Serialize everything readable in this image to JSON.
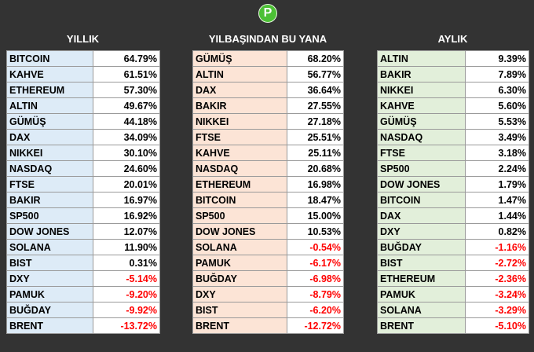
{
  "logo_letter": "P",
  "panels": [
    {
      "title": "YILLIK",
      "rows": [
        {
          "name": "BITCOIN",
          "value": "64.79%"
        },
        {
          "name": "KAHVE",
          "value": "61.51%"
        },
        {
          "name": "ETHEREUM",
          "value": "57.30%"
        },
        {
          "name": "ALTIN",
          "value": "49.67%"
        },
        {
          "name": "GÜMÜŞ",
          "value": "44.18%"
        },
        {
          "name": "DAX",
          "value": "34.09%"
        },
        {
          "name": "NIKKEI",
          "value": "30.10%"
        },
        {
          "name": "NASDAQ",
          "value": "24.60%"
        },
        {
          "name": "FTSE",
          "value": "20.01%"
        },
        {
          "name": "BAKIR",
          "value": "16.97%"
        },
        {
          "name": "SP500",
          "value": "16.92%"
        },
        {
          "name": "DOW JONES",
          "value": "12.07%"
        },
        {
          "name": "SOLANA",
          "value": "11.90%"
        },
        {
          "name": "BIST",
          "value": "0.31%"
        },
        {
          "name": "DXY",
          "value": "-5.14%"
        },
        {
          "name": "PAMUK",
          "value": "-9.20%"
        },
        {
          "name": "BUĞDAY",
          "value": "-9.92%"
        },
        {
          "name": "BRENT",
          "value": "-13.72%"
        }
      ]
    },
    {
      "title": "YILBAŞINDAN BU YANA",
      "rows": [
        {
          "name": "GÜMÜŞ",
          "value": "68.20%"
        },
        {
          "name": "ALTIN",
          "value": "56.77%"
        },
        {
          "name": "DAX",
          "value": "36.64%"
        },
        {
          "name": "BAKIR",
          "value": "27.55%"
        },
        {
          "name": "NIKKEI",
          "value": "27.18%"
        },
        {
          "name": "FTSE",
          "value": "25.51%"
        },
        {
          "name": "KAHVE",
          "value": "25.11%"
        },
        {
          "name": "NASDAQ",
          "value": "20.68%"
        },
        {
          "name": "ETHEREUM",
          "value": "16.98%"
        },
        {
          "name": "BITCOIN",
          "value": "18.47%"
        },
        {
          "name": "SP500",
          "value": "15.00%"
        },
        {
          "name": "DOW JONES",
          "value": "10.53%"
        },
        {
          "name": "SOLANA",
          "value": "-0.54%"
        },
        {
          "name": "PAMUK",
          "value": "-6.17%"
        },
        {
          "name": "BUĞDAY",
          "value": "-6.98%"
        },
        {
          "name": "DXY",
          "value": "-8.79%"
        },
        {
          "name": "BIST",
          "value": "-6.20%"
        },
        {
          "name": "BRENT",
          "value": "-12.72%"
        }
      ]
    },
    {
      "title": "AYLIK",
      "rows": [
        {
          "name": "ALTIN",
          "value": "9.39%"
        },
        {
          "name": "BAKIR",
          "value": "7.89%"
        },
        {
          "name": "NIKKEI",
          "value": "6.30%"
        },
        {
          "name": "KAHVE",
          "value": "5.60%"
        },
        {
          "name": "GÜMÜŞ",
          "value": "5.53%"
        },
        {
          "name": "NASDAQ",
          "value": "3.49%"
        },
        {
          "name": "FTSE",
          "value": "3.18%"
        },
        {
          "name": "SP500",
          "value": "2.24%"
        },
        {
          "name": "DOW JONES",
          "value": "1.79%"
        },
        {
          "name": "BITCOIN",
          "value": "1.47%"
        },
        {
          "name": "DAX",
          "value": "1.44%"
        },
        {
          "name": "DXY",
          "value": "0.82%"
        },
        {
          "name": "BUĞDAY",
          "value": "-1.16%"
        },
        {
          "name": "BIST",
          "value": "-2.72%"
        },
        {
          "name": "ETHEREUM",
          "value": "-2.36%"
        },
        {
          "name": "PAMUK",
          "value": "-3.24%"
        },
        {
          "name": "SOLANA",
          "value": "-3.29%"
        },
        {
          "name": "BRENT",
          "value": "-5.10%"
        }
      ]
    }
  ],
  "colors": {
    "background": "#333333",
    "logo": "#4cc035",
    "yillik_name_bg": "#ddebf7",
    "ybuy_name_bg": "#fce4d6",
    "aylik_name_bg": "#e2efda",
    "negative_text": "#ff0000"
  }
}
